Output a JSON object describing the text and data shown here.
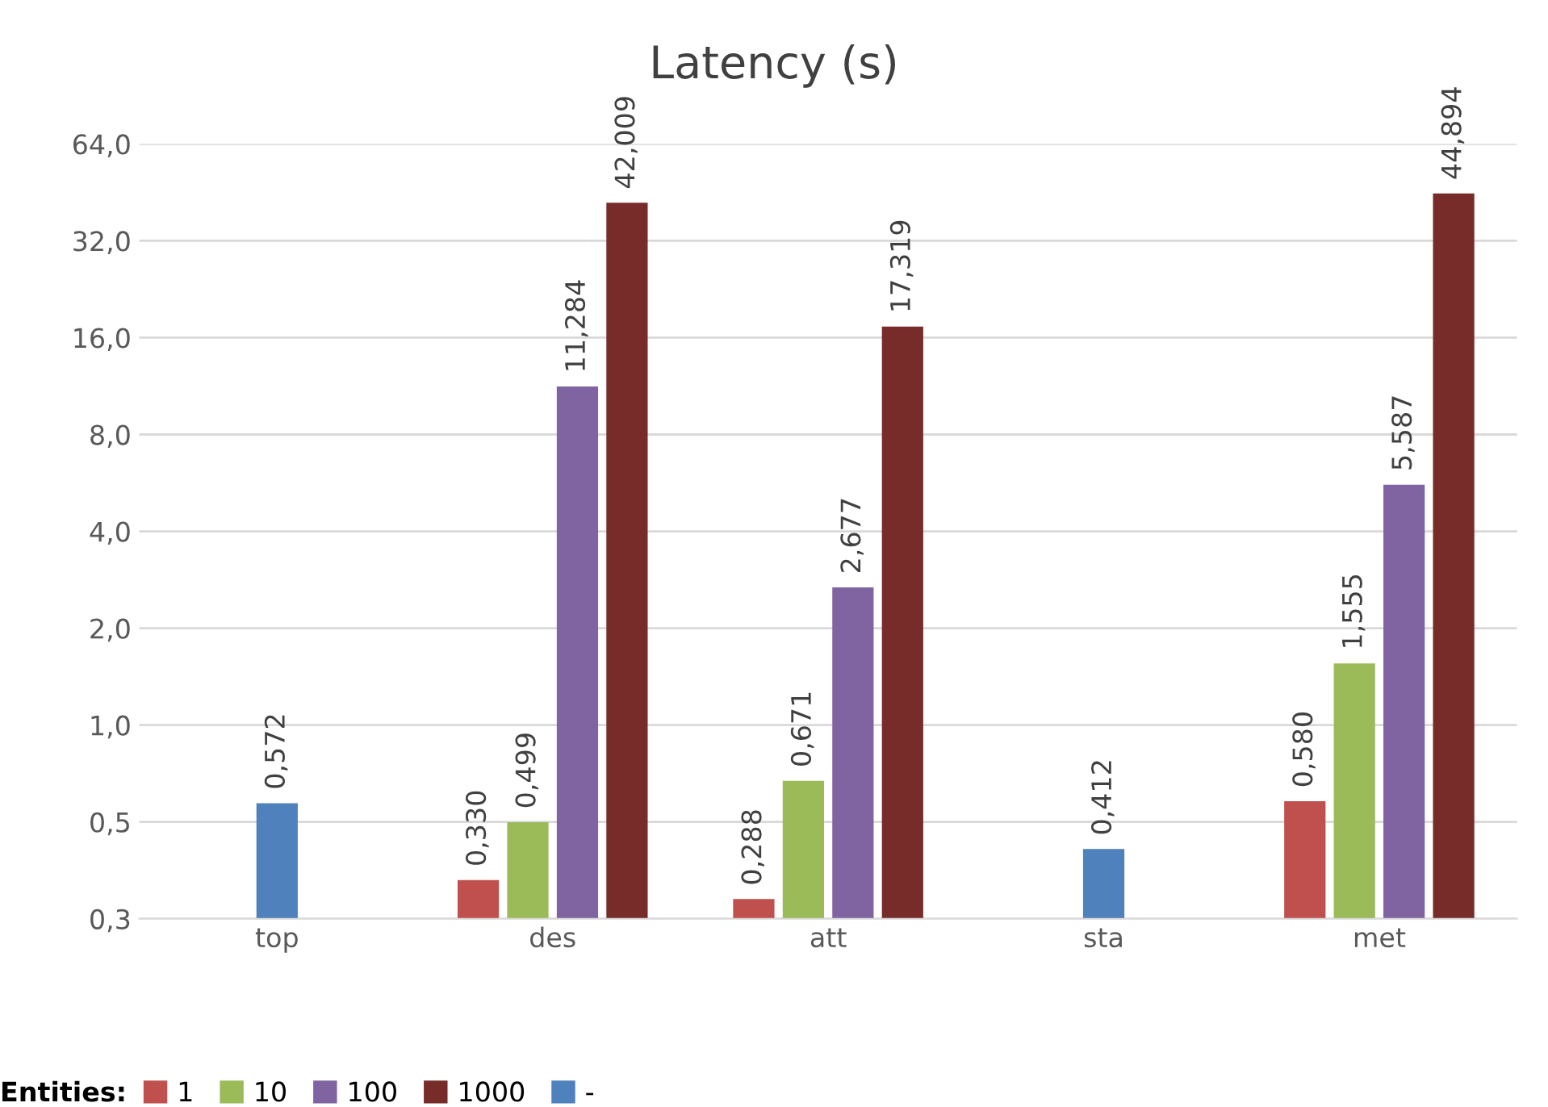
{
  "chart_data": {
    "type": "bar",
    "title": "Latency (s)",
    "categories": [
      "top",
      "des",
      "att",
      "sta",
      "met"
    ],
    "log": "y",
    "ylim": [
      0.25,
      64
    ],
    "yticks": [
      {
        "value": 0.25,
        "label": "0,3"
      },
      {
        "value": 0.5,
        "label": "0,5"
      },
      {
        "value": 1,
        "label": "1,0"
      },
      {
        "value": 2,
        "label": "2,0"
      },
      {
        "value": 4,
        "label": "4,0"
      },
      {
        "value": 8,
        "label": "8,0"
      },
      {
        "value": 16,
        "label": "16,0"
      },
      {
        "value": 32,
        "label": "32,0"
      },
      {
        "value": 64,
        "label": "64,0"
      }
    ],
    "grid": "y",
    "legend": "bottom",
    "legend_title": "Entities:",
    "series": [
      {
        "name": "1",
        "color": "#c0504d",
        "values": [
          null,
          0.33,
          0.288,
          null,
          0.58
        ],
        "value_labels": [
          null,
          "0,330",
          "0,288",
          null,
          "0,580"
        ]
      },
      {
        "name": "10",
        "color": "#9bbb59",
        "values": [
          null,
          0.499,
          0.671,
          null,
          1.555
        ],
        "value_labels": [
          null,
          "0,499",
          "0,671",
          null,
          "1,555"
        ]
      },
      {
        "name": "100",
        "color": "#8064a2",
        "values": [
          null,
          11.284,
          2.677,
          null,
          5.587
        ],
        "value_labels": [
          null,
          "11,284",
          "2,677",
          null,
          "5,587"
        ]
      },
      {
        "name": "1000",
        "color": "#772c2a",
        "values": [
          null,
          42.009,
          17.319,
          null,
          44.894
        ],
        "value_labels": [
          null,
          "42,009",
          "17,319",
          null,
          "44,894"
        ]
      },
      {
        "name": "-",
        "color": "#4f81bd",
        "values": [
          0.572,
          null,
          null,
          0.412,
          null
        ],
        "value_labels": [
          "0,572",
          null,
          null,
          "0,412",
          null
        ]
      }
    ]
  }
}
